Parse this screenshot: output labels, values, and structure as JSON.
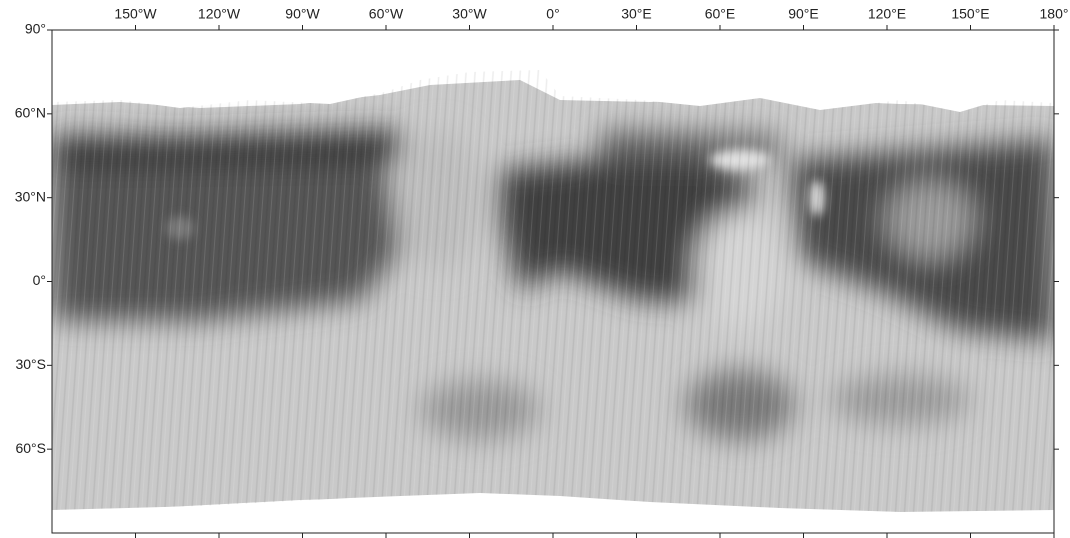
{
  "map": {
    "lon_ticks": [
      {
        "value": -150,
        "label": "150°W"
      },
      {
        "value": -120,
        "label": "120°W"
      },
      {
        "value": -90,
        "label": "90°W"
      },
      {
        "value": -60,
        "label": "60°W"
      },
      {
        "value": -30,
        "label": "30°W"
      },
      {
        "value": 0,
        "label": "0°"
      },
      {
        "value": 30,
        "label": "30°E"
      },
      {
        "value": 60,
        "label": "60°E"
      },
      {
        "value": 90,
        "label": "90°E"
      },
      {
        "value": 120,
        "label": "120°E"
      },
      {
        "value": 150,
        "label": "150°E"
      },
      {
        "value": 180,
        "label": "180°"
      }
    ],
    "lat_ticks": [
      {
        "value": 90,
        "label": "90°"
      },
      {
        "value": 60,
        "label": "60°N"
      },
      {
        "value": 30,
        "label": "30°N"
      },
      {
        "value": 0,
        "label": "0°"
      },
      {
        "value": -30,
        "label": "30°S"
      },
      {
        "value": -60,
        "label": "60°S"
      }
    ],
    "xlim": [
      -180,
      180
    ],
    "ylim": [
      -90,
      90
    ]
  }
}
